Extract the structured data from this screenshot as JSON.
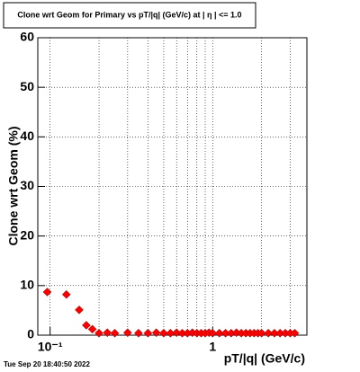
{
  "chart_data": {
    "type": "scatter",
    "title": "Clone wrt Geom for Primary vs pT/|q| (GeV/c) at |  η  | <= 1.0",
    "x_label": "pT/|q| (GeV/c)",
    "y_label": "Clone wrt Geom (%)",
    "footer": "Tue Sep 20 18:40:50 2022",
    "x_log": true,
    "grid": true,
    "xlim": [
      0.084,
      3.8
    ],
    "ylim": [
      0,
      60
    ],
    "xticks": [
      {
        "value": 0.1,
        "label": "10⁻¹"
      },
      1
    ],
    "xgrid_minor": [
      0.2,
      0.3,
      0.4,
      0.5,
      0.6,
      0.7,
      0.8,
      0.9,
      2,
      3
    ],
    "yticks": [
      0,
      10,
      20,
      30,
      40,
      50,
      60
    ],
    "series": [
      {
        "color": "#ff0000",
        "x": [
          0.096,
          0.126,
          0.151,
          0.167,
          0.182,
          0.2,
          0.225,
          0.25,
          0.3,
          0.35,
          0.4,
          0.45,
          0.5,
          0.55,
          0.6,
          0.65,
          0.7,
          0.75,
          0.8,
          0.85,
          0.9,
          0.95,
          1.0,
          1.1,
          1.2,
          1.3,
          1.4,
          1.5,
          1.6,
          1.7,
          1.8,
          1.9,
          2.0,
          2.2,
          2.4,
          2.6,
          2.8,
          3.0,
          3.2
        ],
        "values": [
          8.7,
          8.2,
          5.1,
          2.0,
          1.2,
          0.4,
          0.5,
          0.4,
          0.5,
          0.4,
          0.4,
          0.5,
          0.4,
          0.4,
          0.5,
          0.4,
          0.4,
          0.5,
          0.4,
          0.4,
          0.4,
          0.5,
          0.4,
          0.4,
          0.4,
          0.4,
          0.5,
          0.4,
          0.4,
          0.4,
          0.4,
          0.4,
          0.4,
          0.4,
          0.4,
          0.4,
          0.4,
          0.4,
          0.4
        ]
      }
    ]
  }
}
